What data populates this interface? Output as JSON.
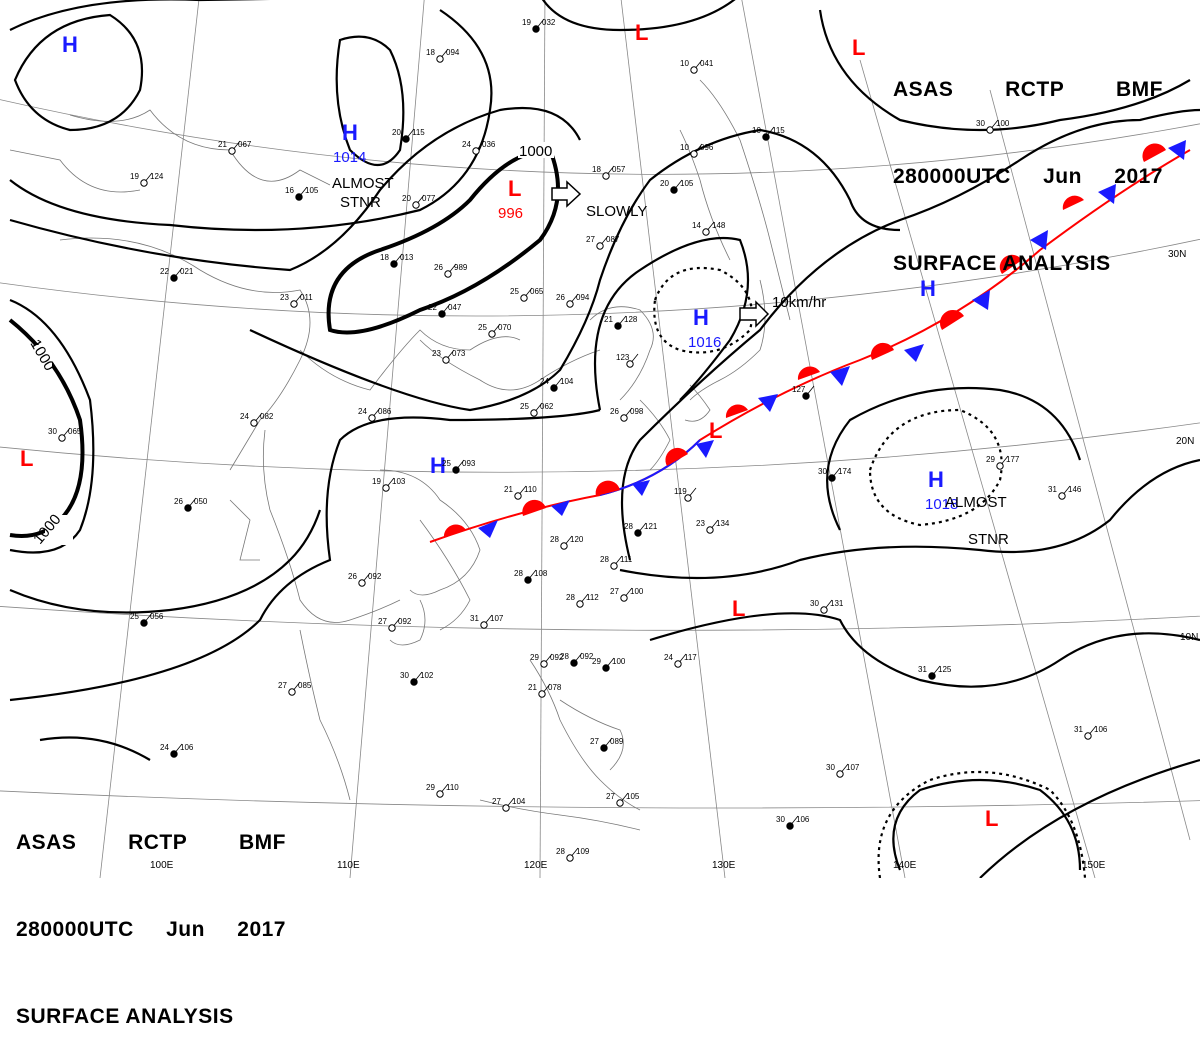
{
  "header": {
    "product": [
      "ASAS",
      "RCTP",
      "BMF"
    ],
    "time": [
      "280000UTC",
      "Jun",
      "2017"
    ],
    "title": "SURFACE ANALYSIS"
  },
  "grid_labels": {
    "latitudes": [
      "30N",
      "20N",
      "10N"
    ],
    "longitudes": [
      "100E",
      "110E",
      "120E",
      "130E",
      "140E",
      "150E"
    ]
  },
  "pressure_systems": [
    {
      "type": "H",
      "value": "",
      "color": "#1a1aff"
    },
    {
      "type": "H",
      "value": "1014",
      "color": "#1a1aff"
    },
    {
      "type": "L",
      "value": "996",
      "color": "#ff0000"
    },
    {
      "type": "L",
      "value": "",
      "color": "#ff0000"
    },
    {
      "type": "L",
      "value": "",
      "color": "#ff0000"
    },
    {
      "type": "H",
      "value": "1016",
      "color": "#1a1aff"
    },
    {
      "type": "H",
      "value": "",
      "color": "#1a1aff"
    },
    {
      "type": "H",
      "value": "1018",
      "color": "#1a1aff"
    },
    {
      "type": "L",
      "value": "",
      "color": "#ff0000"
    },
    {
      "type": "H",
      "value": "",
      "color": "#1a1aff"
    },
    {
      "type": "L",
      "value": "",
      "color": "#ff0000"
    },
    {
      "type": "L",
      "value": "",
      "color": "#ff0000"
    },
    {
      "type": "L",
      "value": "",
      "color": "#ff0000"
    }
  ],
  "annotations": {
    "almost_stnr_1": [
      "ALMOST",
      "STNR"
    ],
    "slowly": "SLOWLY",
    "speed": "10km/hr",
    "almost_stnr_2": [
      "ALMOST",
      "STNR"
    ]
  },
  "isobar_labels": [
    "1000",
    "1000",
    "1000"
  ],
  "front": {
    "type": "stationary",
    "warm_color": "#ff0000",
    "cold_color": "#1a1aff"
  },
  "stations": [
    [
      "19",
      "032"
    ],
    [
      "18",
      "094"
    ],
    [
      "21",
      "067"
    ],
    [
      "20",
      "115"
    ],
    [
      "24",
      "036"
    ],
    [
      "19",
      "124"
    ],
    [
      "16",
      "105"
    ],
    [
      "20",
      "077"
    ],
    [
      "18",
      "057"
    ],
    [
      "20",
      "105"
    ],
    [
      "10",
      "096"
    ],
    [
      "10",
      "041"
    ],
    [
      "10",
      "115"
    ],
    [
      "27",
      "087"
    ],
    [
      "14",
      "148"
    ],
    [
      "18",
      "013"
    ],
    [
      "26",
      "989"
    ],
    [
      "23",
      "011"
    ],
    [
      "22",
      "047"
    ],
    [
      "25",
      "065"
    ],
    [
      "26",
      "094"
    ],
    [
      "21",
      "128"
    ],
    [
      "25",
      "070"
    ],
    [
      "23",
      "073"
    ],
    [
      "22",
      "021"
    ],
    [
      "30",
      "065"
    ],
    [
      "24",
      "086"
    ],
    [
      "25",
      "093"
    ],
    [
      "19",
      "103"
    ],
    [
      "21",
      "110"
    ],
    [
      "26",
      "050"
    ],
    [
      "26",
      "092"
    ],
    [
      "28",
      "120"
    ],
    [
      "28",
      "121"
    ],
    [
      "23",
      "134"
    ],
    [
      "28",
      "111"
    ],
    [
      "28",
      "108"
    ],
    [
      "28",
      "112"
    ],
    [
      "27",
      "100"
    ],
    [
      "25",
      "056"
    ],
    [
      "27",
      "092"
    ],
    [
      "31",
      "107"
    ],
    [
      "30",
      "102"
    ],
    [
      "27",
      "085"
    ],
    [
      "29",
      "092"
    ],
    [
      "29",
      "100"
    ],
    [
      "21",
      "078"
    ],
    [
      "24",
      "117"
    ],
    [
      "24",
      "106"
    ],
    [
      "29",
      "110"
    ],
    [
      "27",
      "104"
    ],
    [
      "27",
      "089"
    ],
    [
      "27",
      "105"
    ],
    [
      "28",
      "109"
    ],
    [
      "30",
      "106"
    ],
    [
      "30",
      "107"
    ],
    [
      "30",
      "131"
    ],
    [
      "31",
      "125"
    ],
    [
      "31",
      "146"
    ],
    [
      "29",
      "177"
    ],
    [
      "30",
      "174"
    ],
    [
      "31",
      "106"
    ],
    [
      "30",
      "100"
    ],
    [
      "127",
      ""
    ],
    [
      "119",
      ""
    ],
    [
      "123",
      ""
    ],
    [
      "24",
      "104"
    ],
    [
      "25",
      "062"
    ],
    [
      "26",
      "098"
    ],
    [
      "28",
      "092"
    ],
    [
      "24",
      "082"
    ]
  ]
}
